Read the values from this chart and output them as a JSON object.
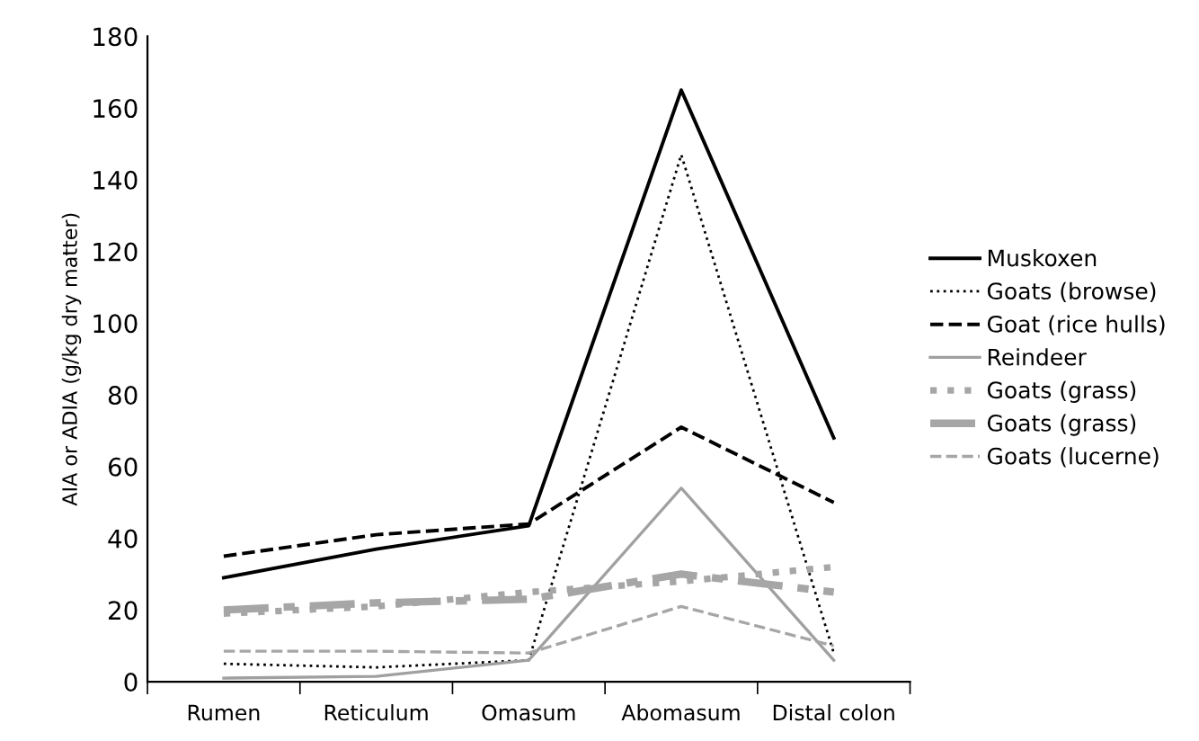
{
  "chart_data": {
    "type": "line",
    "ylabel": "AIA or ADIA (g/kg dry matter)",
    "categories": [
      "Rumen",
      "Reticulum",
      "Omasum",
      "Abomasum",
      "Distal colon"
    ],
    "series": [
      {
        "name": "Muskoxen",
        "color": "#000000",
        "line_style": "solid",
        "values": [
          29,
          37,
          43.5,
          165,
          68
        ]
      },
      {
        "name": "Goats (browse)",
        "color": "#000000",
        "line_style": "dotted",
        "values": [
          5,
          4,
          6,
          147,
          8
        ]
      },
      {
        "name": "Goat (rice hulls)",
        "color": "#000000",
        "line_style": "dashed",
        "values": [
          35,
          41,
          44,
          71,
          50
        ]
      },
      {
        "name": "Reindeer",
        "color": "#a0a0a0",
        "line_style": "solid",
        "values": [
          1,
          1.5,
          6,
          54,
          6
        ]
      },
      {
        "name": "Goats (grass)",
        "color": "#a6a6a6",
        "line_style": "dotted",
        "values": [
          19,
          21,
          25,
          28,
          32
        ]
      },
      {
        "name": "Goats (grass)",
        "color": "#a6a6a6",
        "line_style": "dashdot",
        "values": [
          20,
          22,
          23,
          30,
          25
        ]
      },
      {
        "name": "Goats (lucerne)",
        "color": "#a6a6a6",
        "line_style": "dashed",
        "values": [
          8.5,
          8.5,
          8,
          21,
          10
        ]
      }
    ],
    "ylim": [
      0,
      180
    ],
    "yticks": [
      0,
      20,
      40,
      60,
      80,
      100,
      120,
      140,
      160,
      180
    ],
    "grid": false,
    "legend": "right",
    "marker": "none"
  }
}
